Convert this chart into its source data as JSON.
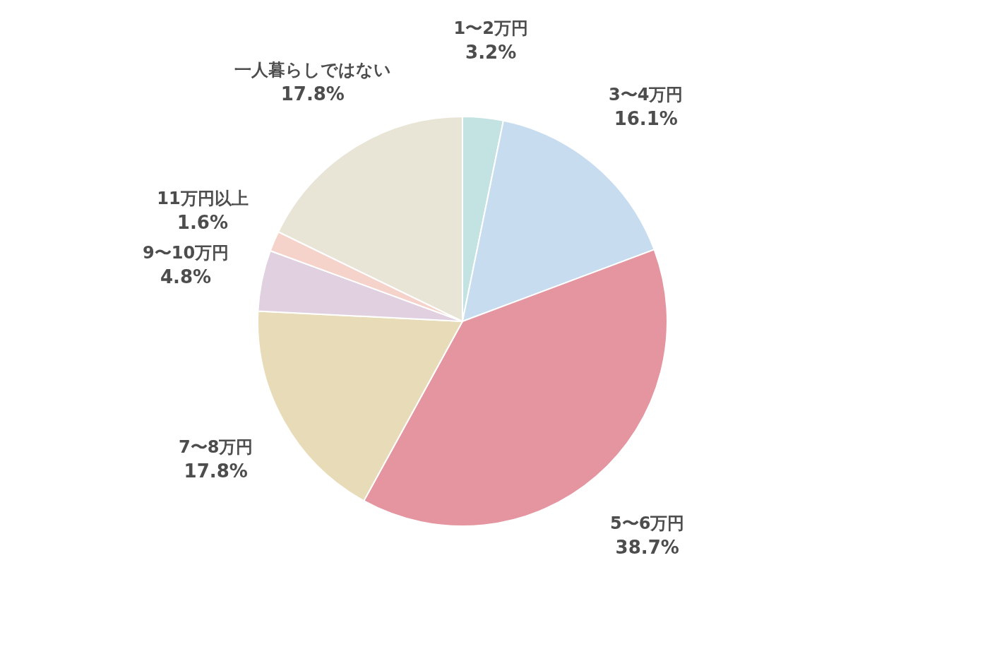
{
  "chart_data": {
    "type": "pie",
    "categories": [
      "1〜2万円",
      "3〜4万円",
      "5〜6万円",
      "7〜8万円",
      "9〜10万円",
      "11万円以上",
      "一人暮らしではない"
    ],
    "values": [
      3.2,
      16.1,
      38.7,
      17.8,
      4.8,
      1.6,
      17.8
    ],
    "value_labels": [
      "3.2%",
      "16.1%",
      "38.7%",
      "17.8%",
      "4.8%",
      "1.6%",
      "17.8%"
    ],
    "colors": [
      "#c2e3e1",
      "#c7dcef",
      "#e495a0",
      "#e8dbb8",
      "#e0d0e0",
      "#f6d3ca",
      "#e8e4d6"
    ],
    "legend": false
  }
}
